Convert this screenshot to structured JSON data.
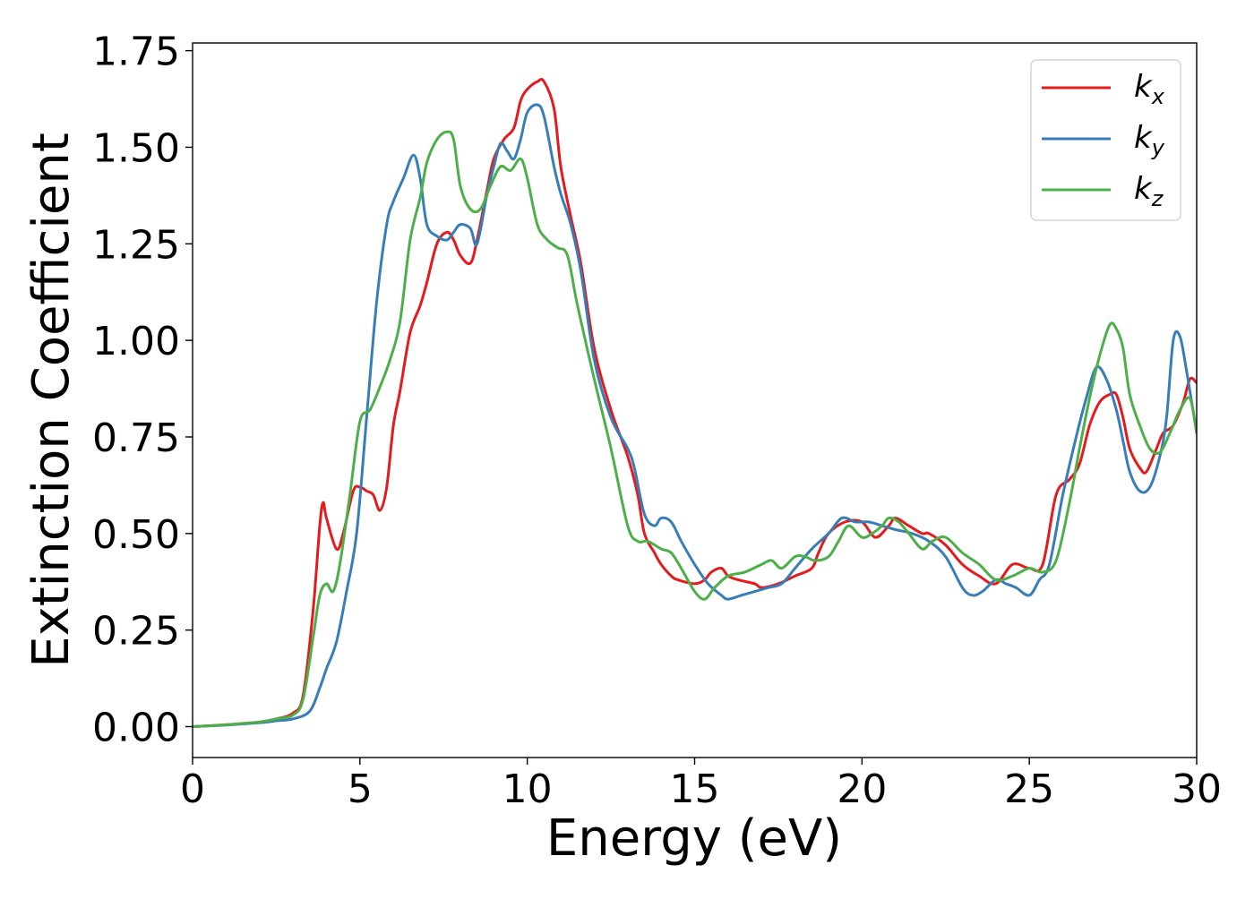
{
  "chart_data": {
    "type": "line",
    "title": "",
    "xlabel": "Energy (eV)",
    "ylabel": "Extinction Coefficient",
    "xlim": [
      0,
      30
    ],
    "ylim": [
      -0.08,
      1.77
    ],
    "xticks": [
      0,
      5,
      10,
      15,
      20,
      25,
      30
    ],
    "yticks": [
      0.0,
      0.25,
      0.5,
      0.75,
      1.0,
      1.25,
      1.5,
      1.75
    ],
    "xtick_labels": [
      "0",
      "5",
      "10",
      "15",
      "20",
      "25",
      "30"
    ],
    "ytick_labels": [
      "0.00",
      "0.25",
      "0.50",
      "0.75",
      "1.00",
      "1.25",
      "1.50",
      "1.75"
    ],
    "grid": false,
    "legend_position": "top-right",
    "series": [
      {
        "name": "k_x",
        "legend_main": "k",
        "legend_sub": "x",
        "color": "#e41a1c",
        "x": [
          0,
          1,
          2,
          2.5,
          3,
          3.3,
          3.6,
          3.8,
          3.9,
          4.0,
          4.3,
          4.5,
          4.8,
          5.0,
          5.2,
          5.4,
          5.6,
          5.8,
          6.0,
          6.2,
          6.5,
          6.8,
          7.0,
          7.3,
          7.6,
          7.8,
          8.0,
          8.3,
          8.5,
          8.8,
          9.0,
          9.3,
          9.6,
          9.8,
          10.0,
          10.3,
          10.5,
          10.8,
          11.0,
          11.3,
          11.6,
          12.0,
          12.5,
          13.0,
          13.3,
          13.5,
          13.8,
          14.0,
          14.3,
          14.5,
          15.0,
          15.3,
          15.5,
          15.8,
          16.0,
          16.3,
          16.8,
          17.0,
          17.5,
          18.0,
          18.5,
          18.7,
          19.0,
          19.5,
          20.0,
          20.4,
          20.8,
          21.0,
          21.4,
          21.8,
          22.0,
          22.5,
          23.0,
          23.5,
          24.0,
          24.5,
          25.0,
          25.4,
          25.8,
          26.2,
          26.5,
          26.8,
          27.1,
          27.4,
          27.6,
          27.8,
          28.0,
          28.3,
          28.5,
          28.8,
          29.0,
          29.3,
          29.6,
          29.8,
          30.0
        ],
        "y": [
          0.0,
          0.005,
          0.012,
          0.02,
          0.035,
          0.08,
          0.3,
          0.52,
          0.58,
          0.54,
          0.46,
          0.5,
          0.61,
          0.62,
          0.61,
          0.6,
          0.56,
          0.62,
          0.78,
          0.87,
          1.02,
          1.09,
          1.15,
          1.25,
          1.28,
          1.26,
          1.22,
          1.2,
          1.26,
          1.39,
          1.47,
          1.52,
          1.55,
          1.62,
          1.65,
          1.67,
          1.67,
          1.6,
          1.45,
          1.32,
          1.2,
          0.98,
          0.82,
          0.7,
          0.6,
          0.5,
          0.45,
          0.42,
          0.39,
          0.38,
          0.37,
          0.38,
          0.4,
          0.41,
          0.39,
          0.38,
          0.37,
          0.36,
          0.37,
          0.39,
          0.41,
          0.45,
          0.5,
          0.53,
          0.53,
          0.49,
          0.52,
          0.54,
          0.52,
          0.5,
          0.5,
          0.47,
          0.42,
          0.39,
          0.37,
          0.42,
          0.41,
          0.42,
          0.6,
          0.64,
          0.68,
          0.78,
          0.84,
          0.86,
          0.86,
          0.8,
          0.72,
          0.67,
          0.66,
          0.72,
          0.76,
          0.78,
          0.84,
          0.9,
          0.89
        ]
      },
      {
        "name": "k_y",
        "legend_main": "k",
        "legend_sub": "y",
        "color": "#377eb8",
        "x": [
          0,
          1,
          2,
          2.5,
          3,
          3.5,
          3.8,
          4.0,
          4.3,
          4.6,
          4.9,
          5.2,
          5.5,
          5.8,
          6.0,
          6.3,
          6.6,
          6.8,
          7.0,
          7.3,
          7.6,
          7.8,
          8.0,
          8.3,
          8.5,
          8.8,
          9.0,
          9.2,
          9.4,
          9.6,
          9.8,
          10.0,
          10.3,
          10.5,
          10.8,
          11.0,
          11.3,
          11.6,
          12.0,
          12.5,
          13.0,
          13.2,
          13.5,
          13.8,
          14.0,
          14.3,
          14.6,
          15.0,
          15.4,
          15.8,
          16.0,
          16.4,
          16.8,
          17.2,
          17.6,
          18.0,
          18.5,
          19.0,
          19.4,
          19.8,
          20.2,
          20.6,
          21.0,
          21.5,
          22.0,
          22.5,
          23.0,
          23.3,
          23.6,
          24.0,
          24.3,
          24.6,
          25.0,
          25.3,
          25.6,
          26.0,
          26.4,
          26.7,
          27.0,
          27.3,
          27.6,
          27.8,
          28.0,
          28.3,
          28.6,
          28.9,
          29.1,
          29.3,
          29.5,
          29.7,
          30.0
        ],
        "y": [
          0.0,
          0.004,
          0.01,
          0.015,
          0.02,
          0.04,
          0.1,
          0.15,
          0.22,
          0.35,
          0.5,
          0.8,
          1.1,
          1.3,
          1.36,
          1.42,
          1.48,
          1.42,
          1.3,
          1.27,
          1.26,
          1.28,
          1.3,
          1.29,
          1.25,
          1.38,
          1.45,
          1.51,
          1.49,
          1.47,
          1.52,
          1.59,
          1.61,
          1.58,
          1.45,
          1.38,
          1.3,
          1.18,
          0.95,
          0.8,
          0.72,
          0.67,
          0.55,
          0.52,
          0.54,
          0.53,
          0.48,
          0.42,
          0.37,
          0.34,
          0.33,
          0.34,
          0.35,
          0.36,
          0.37,
          0.41,
          0.46,
          0.5,
          0.54,
          0.53,
          0.53,
          0.52,
          0.51,
          0.5,
          0.48,
          0.44,
          0.36,
          0.34,
          0.35,
          0.38,
          0.37,
          0.36,
          0.34,
          0.38,
          0.42,
          0.6,
          0.75,
          0.85,
          0.93,
          0.9,
          0.82,
          0.74,
          0.66,
          0.61,
          0.62,
          0.7,
          0.8,
          1.0,
          1.01,
          0.92,
          0.76
        ]
      },
      {
        "name": "k_z",
        "legend_main": "k",
        "legend_sub": "z",
        "color": "#4daf4a",
        "x": [
          0,
          1,
          2,
          2.5,
          3,
          3.3,
          3.6,
          3.8,
          4.0,
          4.2,
          4.4,
          4.7,
          5.0,
          5.3,
          5.6,
          5.9,
          6.2,
          6.5,
          6.8,
          7.0,
          7.3,
          7.6,
          7.8,
          8.0,
          8.3,
          8.6,
          8.9,
          9.2,
          9.5,
          9.8,
          10.0,
          10.3,
          10.6,
          10.9,
          11.2,
          11.5,
          12.0,
          12.5,
          13.0,
          13.3,
          13.6,
          14.0,
          14.3,
          14.6,
          15.0,
          15.3,
          15.6,
          16.0,
          16.5,
          17.0,
          17.3,
          17.6,
          18.0,
          18.3,
          18.6,
          19.0,
          19.3,
          19.6,
          20.0,
          20.3,
          20.6,
          20.8,
          21.1,
          21.4,
          21.8,
          22.1,
          22.5,
          23.0,
          23.5,
          24.0,
          24.5,
          25.0,
          25.4,
          25.8,
          26.2,
          26.5,
          26.8,
          27.1,
          27.4,
          27.6,
          27.8,
          28.0,
          28.3,
          28.6,
          28.9,
          29.2,
          29.5,
          29.8,
          30.0
        ],
        "y": [
          0.0,
          0.005,
          0.012,
          0.02,
          0.03,
          0.07,
          0.23,
          0.34,
          0.37,
          0.35,
          0.42,
          0.6,
          0.79,
          0.82,
          0.88,
          0.95,
          1.05,
          1.26,
          1.37,
          1.46,
          1.52,
          1.54,
          1.52,
          1.4,
          1.34,
          1.34,
          1.4,
          1.45,
          1.44,
          1.47,
          1.42,
          1.3,
          1.26,
          1.24,
          1.22,
          1.09,
          0.9,
          0.72,
          0.52,
          0.48,
          0.48,
          0.46,
          0.45,
          0.41,
          0.35,
          0.33,
          0.36,
          0.39,
          0.4,
          0.42,
          0.43,
          0.41,
          0.44,
          0.44,
          0.43,
          0.44,
          0.48,
          0.52,
          0.49,
          0.5,
          0.52,
          0.54,
          0.53,
          0.5,
          0.46,
          0.48,
          0.49,
          0.45,
          0.42,
          0.38,
          0.39,
          0.41,
          0.4,
          0.43,
          0.58,
          0.72,
          0.85,
          0.96,
          1.04,
          1.03,
          0.98,
          0.86,
          0.78,
          0.72,
          0.71,
          0.76,
          0.82,
          0.85,
          0.76
        ]
      }
    ]
  }
}
